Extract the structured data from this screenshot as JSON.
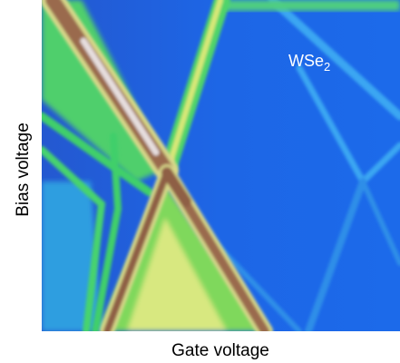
{
  "chart_data": {
    "type": "heatmap",
    "xlabel": "Gate voltage",
    "ylabel": "Bias voltage",
    "annotation": {
      "text": "WSe",
      "subscript": "2"
    }
  }
}
